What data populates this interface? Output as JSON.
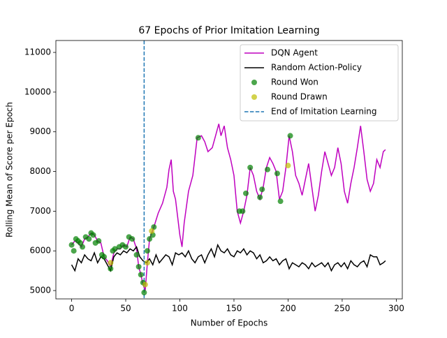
{
  "chart_data": {
    "type": "line",
    "title": "67 Epochs of Prior Imitation Learning",
    "x_label": "Number of Epochs",
    "y_label": "Rolling Mean of Score per Epoch",
    "xlim": [
      -14.55,
      305.55
    ],
    "ylim": [
      4790,
      11300
    ],
    "xticks": [
      0,
      50,
      100,
      150,
      200,
      250,
      300
    ],
    "yticks": [
      5000,
      6000,
      7000,
      8000,
      9000,
      10000,
      11000
    ],
    "legend": "upper right",
    "series": [
      {
        "name": "DQN Agent",
        "type": "line",
        "color": "#bf00bf",
        "x": [
          0,
          3,
          6,
          9,
          12,
          15,
          18,
          21,
          24,
          27,
          30,
          33,
          36,
          39,
          42,
          45,
          48,
          51,
          54,
          57,
          60,
          62,
          64,
          66,
          68,
          70,
          72,
          74,
          76,
          80,
          84,
          88,
          90,
          92,
          94,
          96,
          100,
          102,
          104,
          108,
          112,
          116,
          120,
          123,
          126,
          130,
          133,
          136,
          138,
          141,
          144,
          147,
          150,
          153,
          156,
          159,
          162,
          165,
          168,
          171,
          174,
          177,
          180,
          183,
          186,
          189,
          192,
          195,
          198,
          201,
          204,
          207,
          210,
          213,
          216,
          219,
          222,
          225,
          228,
          231,
          234,
          237,
          240,
          243,
          246,
          249,
          252,
          255,
          258,
          261,
          264,
          267,
          270,
          273,
          276,
          279,
          282,
          285,
          288,
          290
        ],
        "values": [
          6150,
          6250,
          6200,
          6100,
          6300,
          6350,
          6450,
          6400,
          6250,
          6200,
          5850,
          5750,
          5600,
          5950,
          6050,
          6050,
          6150,
          6100,
          6350,
          6300,
          6050,
          5600,
          5400,
          5150,
          5000,
          5700,
          6300,
          6450,
          6600,
          6950,
          7200,
          7600,
          8050,
          8300,
          7500,
          7300,
          6400,
          6100,
          6700,
          7500,
          7900,
          8850,
          8900,
          8750,
          8500,
          8600,
          8900,
          9200,
          8900,
          9150,
          8600,
          8300,
          7900,
          7000,
          6700,
          7000,
          7400,
          8100,
          7900,
          7500,
          7300,
          7600,
          8100,
          8350,
          8200,
          8000,
          7300,
          7500,
          8100,
          8900,
          8500,
          7900,
          7700,
          7400,
          7800,
          8200,
          7600,
          7000,
          7400,
          8000,
          8500,
          8200,
          7900,
          8100,
          8600,
          8200,
          7500,
          7200,
          7700,
          8100,
          8600,
          9150,
          8500,
          7800,
          7500,
          7700,
          8300,
          8100,
          8500,
          8550
        ]
      },
      {
        "name": "Random Action-Policy",
        "type": "line",
        "color": "#000000",
        "x": [
          0,
          3,
          6,
          9,
          12,
          15,
          18,
          21,
          24,
          27,
          30,
          33,
          36,
          39,
          42,
          45,
          48,
          51,
          54,
          57,
          60,
          63,
          66,
          69,
          72,
          75,
          78,
          81,
          84,
          87,
          90,
          93,
          96,
          99,
          102,
          105,
          108,
          111,
          114,
          117,
          120,
          123,
          126,
          129,
          132,
          135,
          138,
          141,
          144,
          147,
          150,
          153,
          156,
          159,
          162,
          165,
          168,
          171,
          174,
          177,
          180,
          183,
          186,
          189,
          192,
          195,
          198,
          201,
          204,
          207,
          210,
          213,
          216,
          219,
          222,
          225,
          228,
          231,
          234,
          237,
          240,
          243,
          246,
          249,
          252,
          255,
          258,
          261,
          264,
          267,
          270,
          273,
          276,
          279,
          282,
          285,
          288,
          290
        ],
        "values": [
          5650,
          5500,
          5800,
          5700,
          5900,
          5800,
          5750,
          5950,
          5700,
          5850,
          5800,
          5650,
          5500,
          5850,
          5950,
          5900,
          6000,
          5950,
          6050,
          6000,
          6100,
          5850,
          5750,
          5700,
          5800,
          5650,
          5900,
          5700,
          5800,
          5900,
          5850,
          5650,
          5950,
          5900,
          5950,
          5850,
          6000,
          5800,
          5700,
          5850,
          5900,
          5700,
          5900,
          6050,
          5850,
          6150,
          6000,
          5950,
          6050,
          5900,
          5850,
          6000,
          5950,
          6050,
          5900,
          6000,
          5950,
          5800,
          5900,
          5700,
          5750,
          5850,
          5750,
          5800,
          5650,
          5750,
          5800,
          5550,
          5700,
          5650,
          5600,
          5700,
          5650,
          5550,
          5700,
          5600,
          5650,
          5700,
          5600,
          5700,
          5500,
          5650,
          5700,
          5600,
          5700,
          5550,
          5750,
          5650,
          5600,
          5700,
          5750,
          5600,
          5900,
          5850,
          5850,
          5650,
          5700,
          5750
        ]
      },
      {
        "name": "Round Won",
        "type": "scatter",
        "color": "#008000",
        "alpha": 0.7,
        "x": [
          0,
          2,
          4,
          6,
          8,
          10,
          13,
          16,
          18,
          20,
          22,
          25,
          28,
          30,
          36,
          38,
          40,
          44,
          47,
          50,
          53,
          56,
          60,
          62,
          64,
          66,
          67,
          70,
          72,
          75,
          76,
          117,
          155,
          158,
          161,
          165,
          174,
          176,
          181,
          190,
          193,
          202
        ],
        "values": [
          6150,
          6000,
          6300,
          6250,
          6200,
          6100,
          6350,
          6300,
          6450,
          6400,
          6200,
          6250,
          5900,
          5850,
          5550,
          6000,
          6050,
          6100,
          6150,
          6100,
          6350,
          6300,
          5900,
          5600,
          5400,
          5200,
          4950,
          6000,
          6300,
          6400,
          6600,
          8850,
          7000,
          7000,
          7450,
          8100,
          7350,
          7550,
          8050,
          7950,
          7250,
          8900
        ]
      },
      {
        "name": "Round Drawn",
        "type": "scatter",
        "color": "#bfbf00",
        "alpha": 0.7,
        "x": [
          36,
          68,
          70,
          74,
          200
        ],
        "values": [
          5700,
          5150,
          5700,
          6500,
          8150
        ]
      },
      {
        "name": "End of Imitation Learning",
        "type": "vline",
        "color": "#1f77b4",
        "x": 67
      }
    ]
  }
}
